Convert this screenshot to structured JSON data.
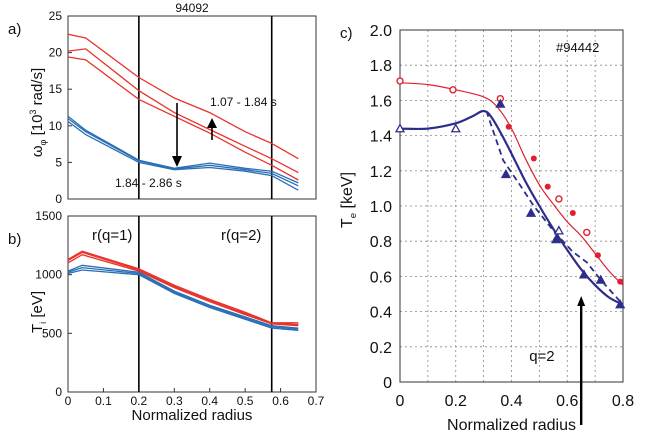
{
  "chart_data": [
    {
      "panel_label": "a)",
      "type": "line",
      "title": "94092",
      "ylabel": "ω",
      "ylabel_sub": "φ",
      "ylabel_rest": "[10",
      "ylabel_sup": "3",
      "ylabel_end": "rad/s]",
      "xlabel": "",
      "xlim": [
        0,
        0.7
      ],
      "ylim": [
        0,
        25
      ],
      "yticks": [
        "0",
        "5",
        "10",
        "15",
        "20",
        "25"
      ],
      "vlines": [
        0.2,
        0.575
      ],
      "annotations": [
        "1.07 - 1.84 s",
        "1.84 - 2.86 s"
      ],
      "series": [
        {
          "color": "#e8332a",
          "x": [
            0,
            0.05,
            0.2,
            0.3,
            0.4,
            0.5,
            0.575,
            0.65
          ],
          "y": [
            22.5,
            22.0,
            16.6,
            13.8,
            11.8,
            9.2,
            7.6,
            5.5
          ]
        },
        {
          "color": "#e8332a",
          "x": [
            0,
            0.05,
            0.2,
            0.3,
            0.4,
            0.5,
            0.575,
            0.65
          ],
          "y": [
            20.2,
            20.5,
            14.8,
            11.8,
            9.5,
            7.2,
            5.5,
            3.6
          ]
        },
        {
          "color": "#e8332a",
          "x": [
            0,
            0.05,
            0.2,
            0.3,
            0.4,
            0.5,
            0.575,
            0.65
          ],
          "y": [
            19.4,
            19.0,
            13.6,
            11.3,
            9.0,
            6.4,
            4.6,
            2.6
          ]
        },
        {
          "color": "#2a6fb5",
          "x": [
            0,
            0.05,
            0.2,
            0.3,
            0.4,
            0.5,
            0.575,
            0.65
          ],
          "y": [
            11.3,
            9.4,
            5.3,
            4.2,
            4.9,
            4.2,
            3.8,
            2.2
          ]
        },
        {
          "color": "#2a6fb5",
          "x": [
            0,
            0.05,
            0.2,
            0.3,
            0.4,
            0.5,
            0.575,
            0.65
          ],
          "y": [
            11.0,
            9.2,
            5.2,
            4.1,
            4.6,
            4.0,
            3.5,
            1.8
          ]
        },
        {
          "color": "#2a6fb5",
          "x": [
            0,
            0.05,
            0.2,
            0.3,
            0.4,
            0.5,
            0.575,
            0.65
          ],
          "y": [
            10.6,
            8.8,
            5.0,
            4.0,
            4.3,
            3.8,
            3.2,
            1.2
          ]
        }
      ]
    },
    {
      "panel_label": "b)",
      "type": "line",
      "ylabel": "T",
      "ylabel_sub": "i",
      "ylabel_end": "[eV]",
      "xlabel": "Normalized radius",
      "xlim": [
        0,
        0.7
      ],
      "ylim": [
        0,
        1500
      ],
      "yticks": [
        "0",
        "500",
        "1000",
        "1500"
      ],
      "xticks": [
        "0",
        "0.1",
        "0.2",
        "0.3",
        "0.4",
        "0.5",
        "0.6",
        "0.7"
      ],
      "vlines": [
        0.2,
        0.575
      ],
      "vline_labels": [
        "r(q=1)",
        "r(q=2)"
      ],
      "series": [
        {
          "color": "#e8332a",
          "x": [
            0,
            0.04,
            0.2,
            0.3,
            0.4,
            0.5,
            0.575,
            0.65
          ],
          "y": [
            1130,
            1200,
            1050,
            910,
            790,
            680,
            590,
            590
          ]
        },
        {
          "color": "#e8332a",
          "x": [
            0,
            0.04,
            0.2,
            0.3,
            0.4,
            0.5,
            0.575,
            0.65
          ],
          "y": [
            1120,
            1190,
            1040,
            900,
            780,
            670,
            585,
            575
          ]
        },
        {
          "color": "#e8332a",
          "x": [
            0,
            0.04,
            0.2,
            0.3,
            0.4,
            0.5,
            0.575,
            0.65
          ],
          "y": [
            1100,
            1170,
            1030,
            890,
            770,
            660,
            580,
            565
          ]
        },
        {
          "color": "#2a6fb5",
          "x": [
            0,
            0.04,
            0.2,
            0.3,
            0.4,
            0.5,
            0.575,
            0.65
          ],
          "y": [
            1030,
            1080,
            1020,
            860,
            740,
            640,
            565,
            545
          ]
        },
        {
          "color": "#2a6fb5",
          "x": [
            0,
            0.04,
            0.2,
            0.3,
            0.4,
            0.5,
            0.575,
            0.65
          ],
          "y": [
            1020,
            1060,
            1010,
            850,
            730,
            630,
            555,
            535
          ]
        },
        {
          "color": "#2a6fb5",
          "x": [
            0,
            0.04,
            0.2,
            0.3,
            0.4,
            0.5,
            0.575,
            0.65
          ],
          "y": [
            1010,
            1040,
            1000,
            840,
            720,
            620,
            545,
            525
          ]
        }
      ]
    },
    {
      "panel_label": "c)",
      "type": "scatter",
      "title": "#94442",
      "ylabel": "T",
      "ylabel_sub": "e",
      "ylabel_end": "[keV]",
      "xlabel": "Normalized radius",
      "xlim": [
        0,
        0.8
      ],
      "ylim": [
        0,
        2.0
      ],
      "grid": true,
      "yticks": [
        "0",
        "0.2",
        "0.4",
        "0.6",
        "0.8",
        "1.0",
        "1.2",
        "1.4",
        "1.6",
        "1.8",
        "2.0"
      ],
      "xticks": [
        "0",
        "0.2",
        "0.4",
        "0.6",
        "0.8"
      ],
      "annotation": "q=2",
      "annotation_x": 0.65,
      "series": [
        {
          "color": "#e02030",
          "fit_x": [
            0.0,
            0.1,
            0.2,
            0.3,
            0.35,
            0.4,
            0.45,
            0.5,
            0.55,
            0.6,
            0.65,
            0.7,
            0.75,
            0.8
          ],
          "fit_y": [
            1.7,
            1.69,
            1.66,
            1.62,
            1.56,
            1.44,
            1.27,
            1.12,
            1.01,
            0.91,
            0.83,
            0.73,
            0.63,
            0.55
          ],
          "open_x": [
            0.0,
            0.19,
            0.36,
            0.57,
            0.67
          ],
          "open_y": [
            1.71,
            1.66,
            1.61,
            1.04,
            0.85
          ],
          "filled_x": [
            0.39,
            0.48,
            0.53,
            0.62,
            0.71,
            0.79
          ],
          "filled_y": [
            1.45,
            1.27,
            1.11,
            0.96,
            0.72,
            0.57
          ]
        },
        {
          "color": "#2e2e8a",
          "fit_x": [
            0.0,
            0.1,
            0.2,
            0.26,
            0.3,
            0.33,
            0.38,
            0.45,
            0.5,
            0.55,
            0.6,
            0.65,
            0.7,
            0.75,
            0.8
          ],
          "fit_y": [
            1.44,
            1.44,
            1.47,
            1.51,
            1.54,
            1.5,
            1.36,
            1.14,
            1.0,
            0.87,
            0.75,
            0.64,
            0.55,
            0.48,
            0.44
          ],
          "open_x": [
            0.0,
            0.2,
            0.57
          ],
          "open_y": [
            1.44,
            1.44,
            0.86
          ],
          "filled_x": [
            0.36,
            0.66,
            0.79
          ],
          "filled_y": [
            1.58,
            0.61,
            0.44
          ],
          "dash_x": [
            0.31,
            0.37,
            0.43,
            0.48,
            0.55,
            0.62,
            0.67,
            0.72,
            0.8
          ],
          "dash_y": [
            1.54,
            1.26,
            1.12,
            1.0,
            0.86,
            0.74,
            0.68,
            0.58,
            0.44
          ],
          "dash_markers_x": [
            0.38,
            0.47,
            0.56,
            0.72
          ],
          "dash_markers_y": [
            1.18,
            0.96,
            0.81,
            0.58
          ]
        }
      ]
    }
  ]
}
